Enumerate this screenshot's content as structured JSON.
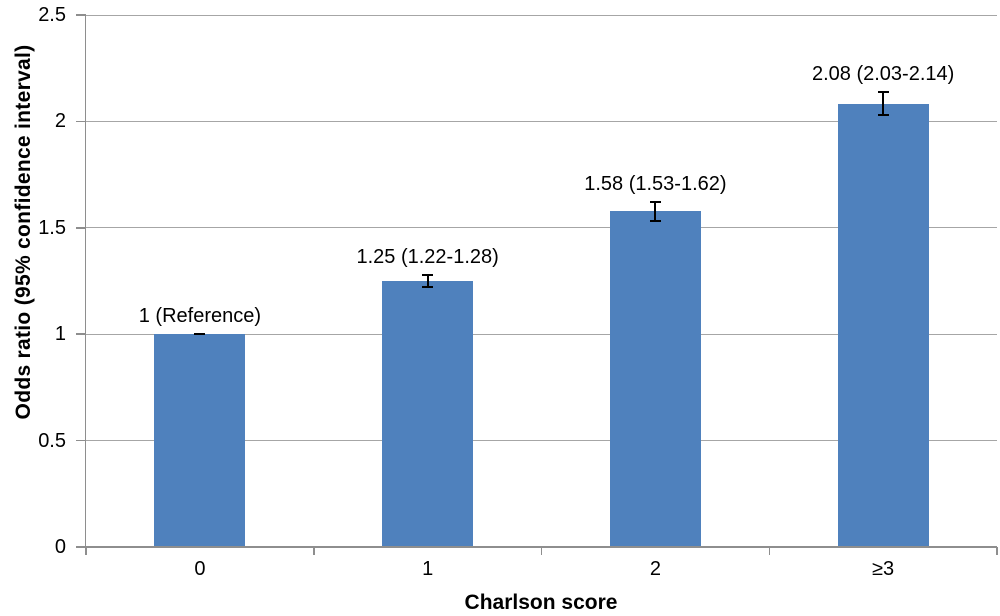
{
  "chart_data": {
    "type": "bar",
    "xlabel": "Charlson score",
    "ylabel": "Odds ratio (95% confidence interval)",
    "categories": [
      "0",
      "1",
      "2",
      "≥3"
    ],
    "values": [
      1,
      1.25,
      1.58,
      2.08
    ],
    "error_low": [
      1,
      1.22,
      1.53,
      2.03
    ],
    "error_high": [
      1,
      1.28,
      1.62,
      2.14
    ],
    "bar_labels": [
      "1 (Reference)",
      "1.25 (1.22-1.28)",
      "1.58 (1.53-1.62)",
      "2.08 (2.03-2.14)"
    ],
    "ylim": [
      0,
      2.5
    ],
    "ytick_step": 0.5,
    "ytick_labels": [
      "0",
      "0.5",
      "1",
      "1.5",
      "2",
      "2.5"
    ],
    "grid": true,
    "legend": false,
    "bar_gap_ratio": 0.4,
    "colors": {
      "bar": "#4f81bd",
      "gridline": "#a6a6a6",
      "axis": "#8e8e8e",
      "error_bar": "#000000",
      "text": "#000000",
      "background": "#ffffff"
    }
  }
}
